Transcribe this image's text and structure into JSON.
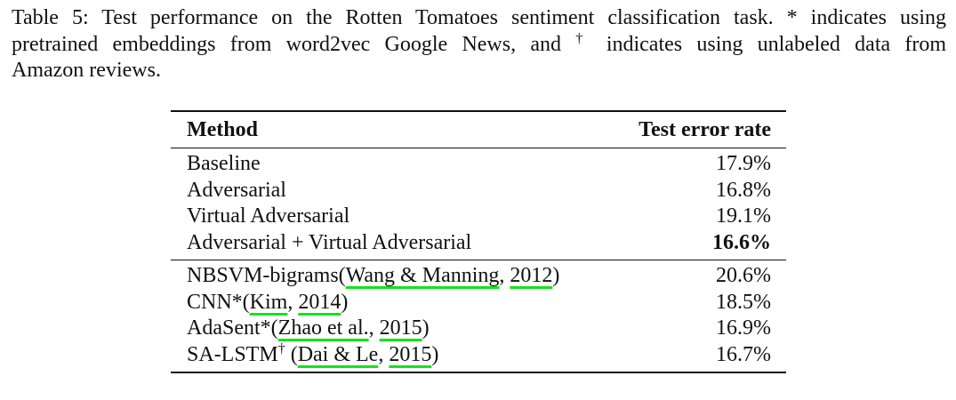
{
  "caption": {
    "line1": "Table 5: Test performance on the Rotten Tomatoes sentiment classification task. * indicates using",
    "line2_pre": "pretrained embeddings from word2vec Google News, and",
    "line2_dagger": "†",
    "line2_post": "indicates using unlabeled data from",
    "line3": "Amazon reviews."
  },
  "table": {
    "headers": {
      "method": "Method",
      "metric": "Test error rate"
    },
    "group1": [
      {
        "method": "Baseline",
        "value": "17.9%"
      },
      {
        "method": "Adversarial",
        "value": "16.8%"
      },
      {
        "method": "Virtual Adversarial",
        "value": "19.1%"
      },
      {
        "method": "Adversarial + Virtual Adversarial",
        "value": "16.6%"
      }
    ],
    "group2": [
      {
        "prefix": "NBSVM-bigrams(",
        "cite_authors": "Wang & Manning",
        "sep": ", ",
        "cite_year": "2012",
        "suffix": ")",
        "value": "20.6%"
      },
      {
        "prefix": "CNN*(",
        "cite_authors": "Kim",
        "sep": ", ",
        "cite_year": "2014",
        "suffix": ")",
        "value": "18.5%"
      },
      {
        "prefix": "AdaSent*(",
        "cite_authors": "Zhao et al.",
        "sep": ", ",
        "cite_year": "2015",
        "suffix": ")",
        "value": "16.9%"
      },
      {
        "prefix": "SA-LSTM",
        "dagger": "†",
        "prefix2": " (",
        "cite_authors": "Dai & Le",
        "sep": ", ",
        "cite_year": "2015",
        "suffix": ")",
        "value": "16.7%"
      }
    ]
  }
}
